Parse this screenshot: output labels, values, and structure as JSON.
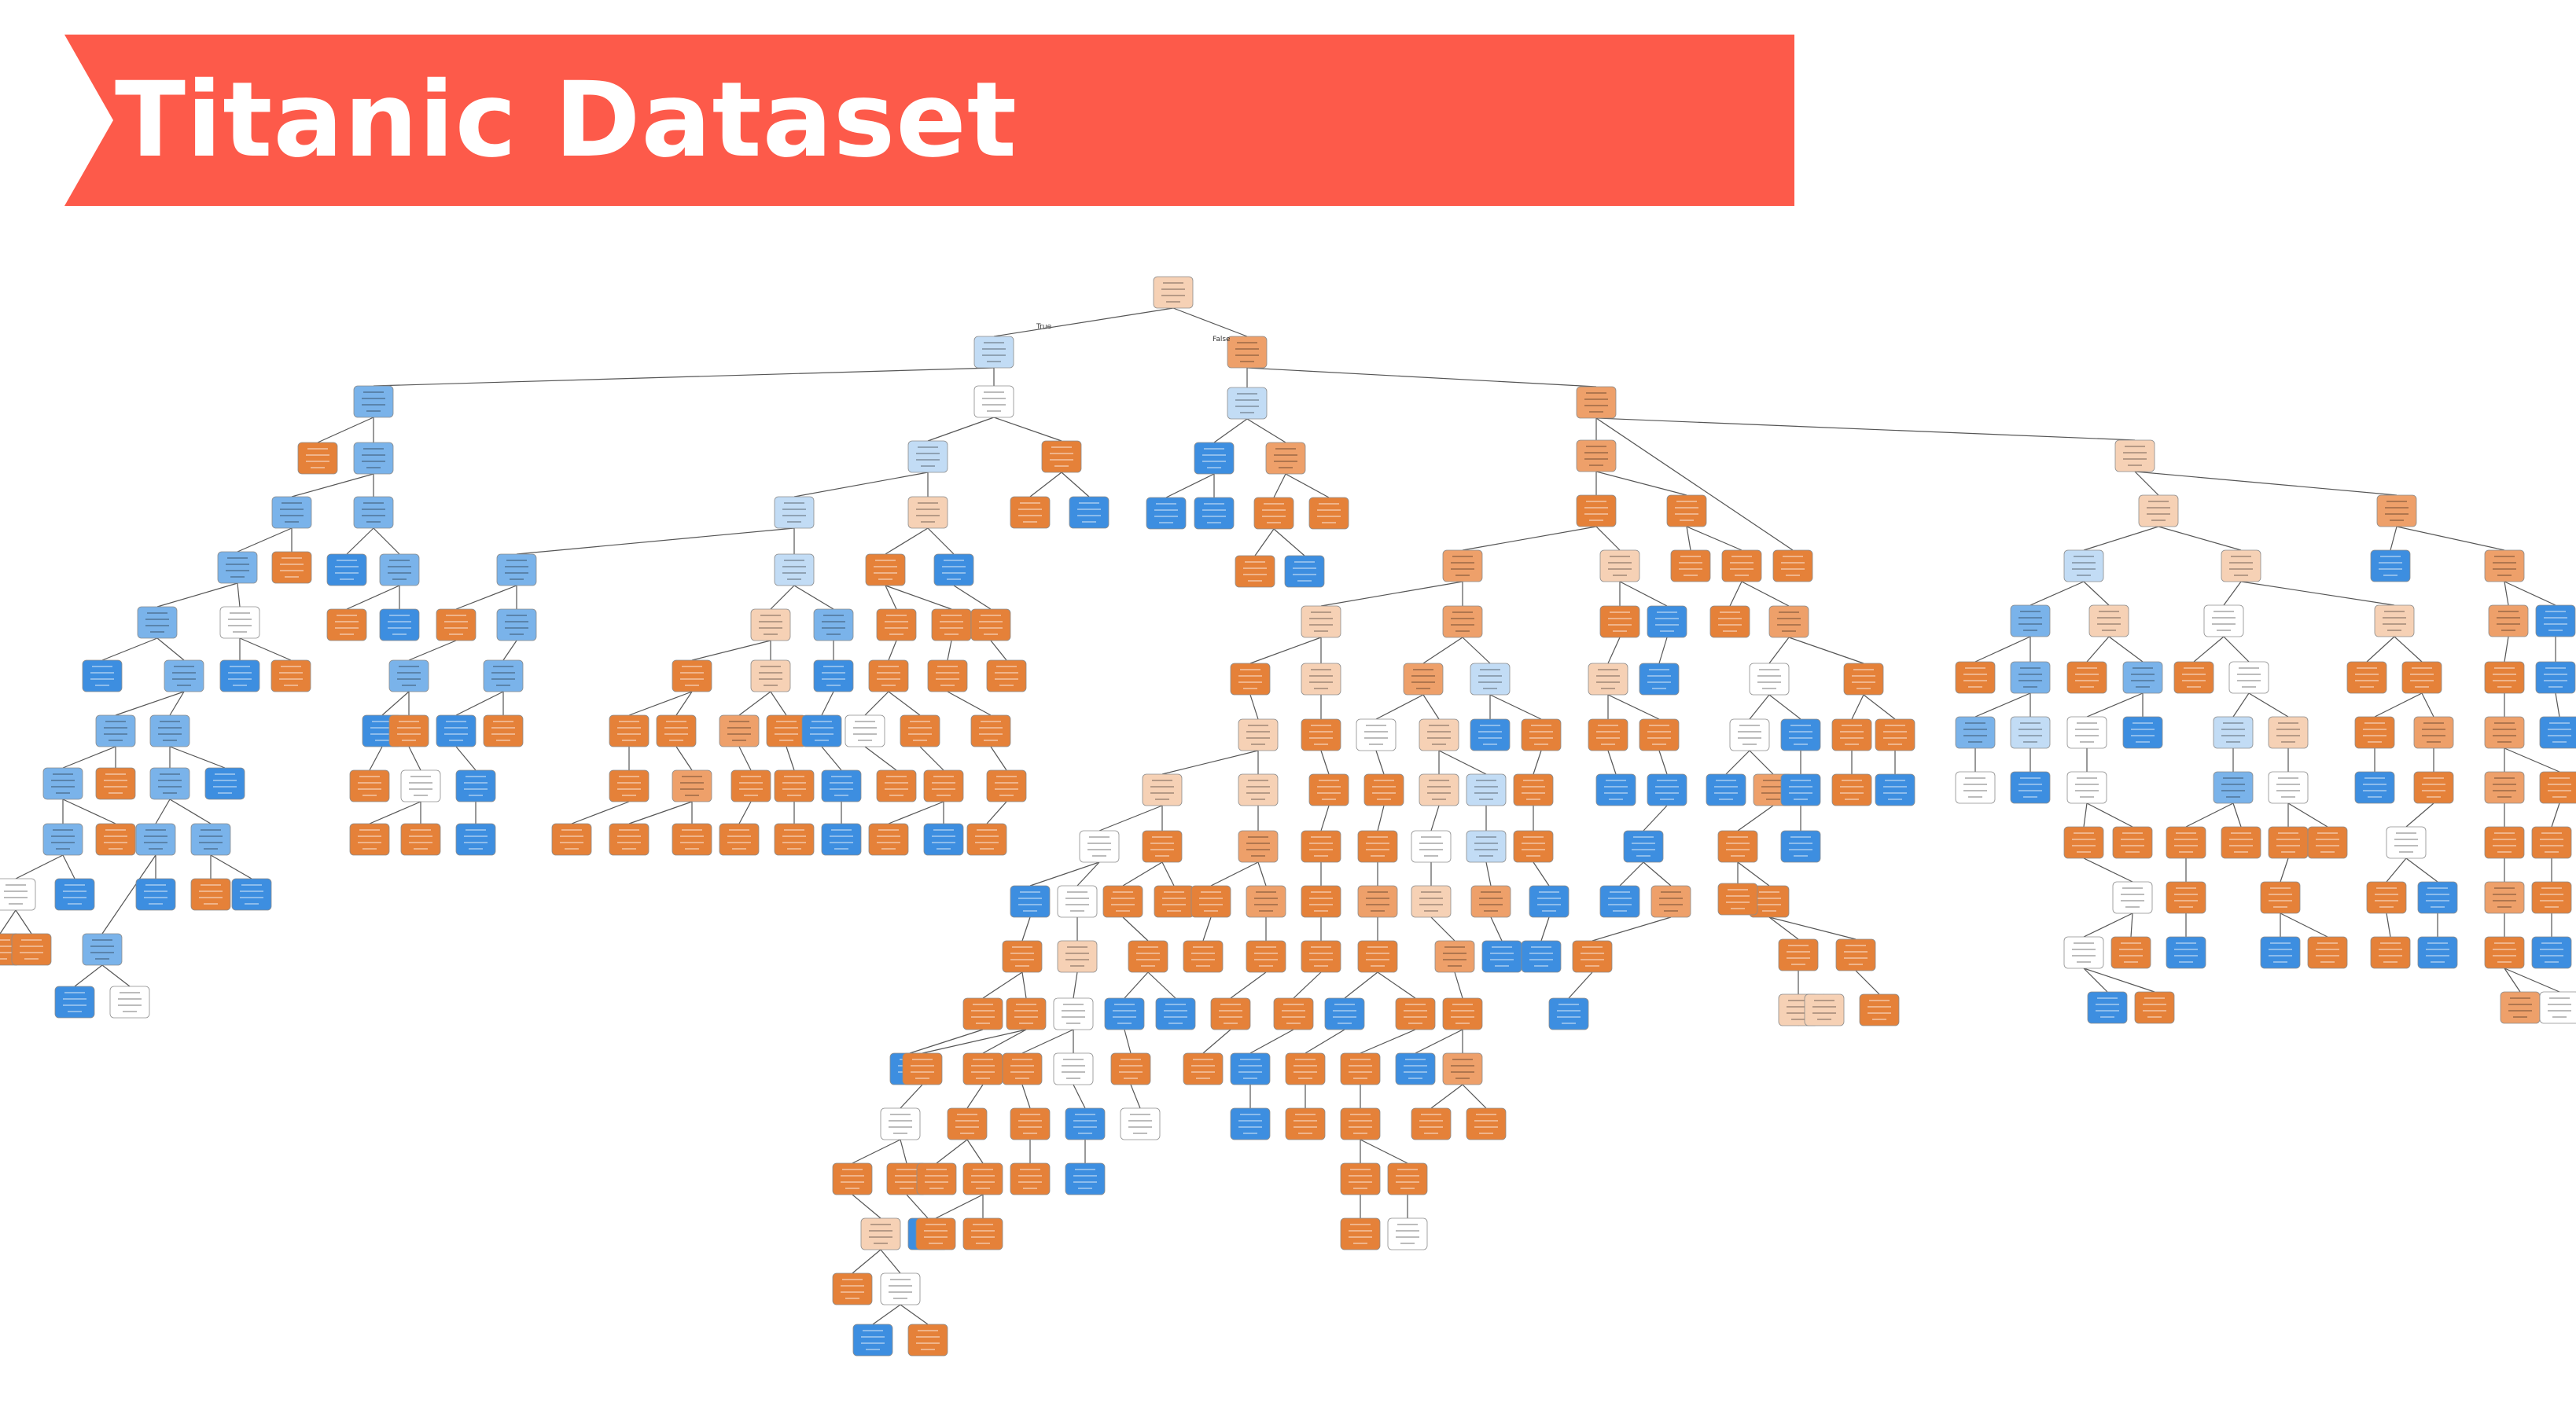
{
  "banner": {
    "title": "Titanic Dataset"
  },
  "tree": {
    "branch_labels": {
      "true": "True",
      "false": "False"
    },
    "class_colors": {
      "survived": "#3d8ee0",
      "not_survived": "#e58139",
      "neutral": "#ffffff"
    },
    "node_border_color": "#8c8c8c",
    "edge_color": "#555555"
  }
}
